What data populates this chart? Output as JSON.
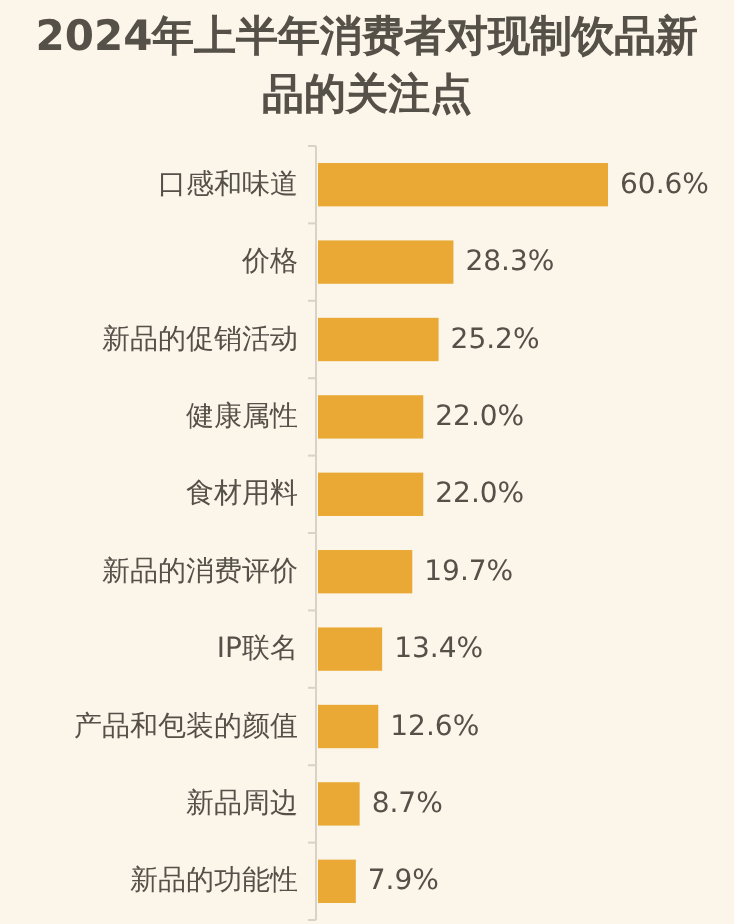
{
  "chart_data": {
    "type": "bar",
    "orientation": "horizontal",
    "title": "2024年上半年消费者对现制饮品新品的关注点",
    "categories": [
      "口感和味道",
      "价格",
      "新品的促销活动",
      "健康属性",
      "食材用料",
      "新品的消费评价",
      "IP联名",
      "产品和包装的颜值",
      "新品周边",
      "新品的功能性"
    ],
    "values": [
      60.6,
      28.3,
      25.2,
      22.0,
      22.0,
      19.7,
      13.4,
      12.6,
      8.7,
      7.9
    ],
    "value_labels": [
      "60.6%",
      "28.3%",
      "25.2%",
      "22.0%",
      "22.0%",
      "19.7%",
      "13.4%",
      "12.6%",
      "8.7%",
      "7.9%"
    ],
    "color": "#eaa935"
  }
}
